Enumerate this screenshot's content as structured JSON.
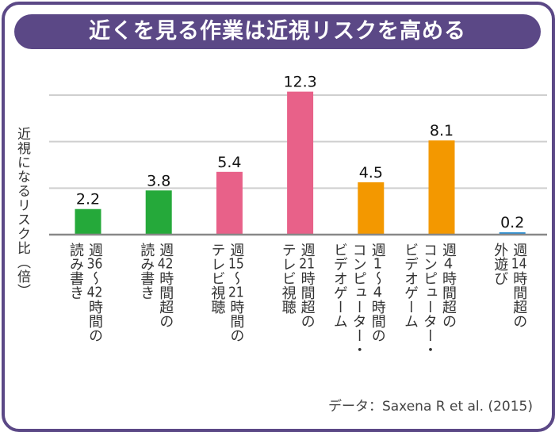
{
  "title": "近くを見る作業は近視リスクを高める",
  "source": "データ：Saxena R et al. (2015)",
  "colors": {
    "frame": "#5b4886",
    "green": "#25a93a",
    "pink": "#e86189",
    "orange": "#f39800",
    "blue": "#2b8fd2"
  },
  "chart_data": {
    "type": "bar",
    "title": "近くを見る作業は近視リスクを高める",
    "xlabel": "",
    "ylabel": "近視になるリスク比（倍）",
    "ylim": [
      0,
      12
    ],
    "yticks": [
      0,
      4,
      8,
      12
    ],
    "grid": true,
    "categories": [
      "週36～42時間の\n読み書き",
      "週42時間超の\n読み書き",
      "週15～21時間の\nテレビ視聴",
      "週21時間超の\nテレビ視聴",
      "週1～4時間の\nコンピューター・\nビデオゲーム",
      "週4時間超の\nコンピューター・\nビデオゲーム",
      "週14時間超の\n外遊び"
    ],
    "values": [
      2.2,
      3.8,
      5.4,
      12.3,
      4.5,
      8.1,
      0.2
    ],
    "value_labels": [
      "2.2",
      "3.8",
      "5.4",
      "12.3",
      "4.5",
      "8.1",
      "0.2"
    ],
    "bar_colors": [
      "#25a93a",
      "#25a93a",
      "#e86189",
      "#e86189",
      "#f39800",
      "#f39800",
      "#2b8fd2"
    ]
  }
}
